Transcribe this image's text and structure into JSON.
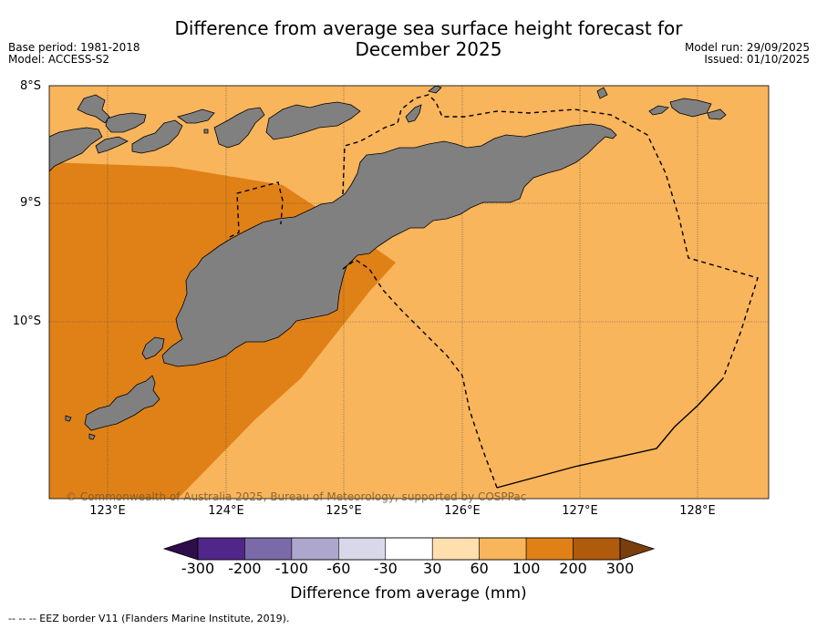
{
  "header": {
    "title_line1": "Difference from average sea surface height forecast for",
    "title_line2": "December 2025",
    "base_period": "Base period: 1981-2018",
    "model": "Model: ACCESS-S2",
    "model_run": "Model run: 29/09/2025",
    "issued": "Issued: 01/10/2025"
  },
  "map": {
    "lat_labels": [
      "8°S",
      "9°S",
      "10°S"
    ],
    "lon_labels": [
      "123°E",
      "124°E",
      "125°E",
      "126°E",
      "127°E",
      "128°E"
    ],
    "copyright": "© Commonwealth of Australia 2025, Bureau of Meteorology, supported by COSPPac",
    "colors": {
      "ocean_light": "#f9b55c",
      "ocean_dark": "#e08117",
      "land": "#808080",
      "gridline": "#404040"
    }
  },
  "colorbar": {
    "title": "Difference from average (mm)",
    "tick_labels": [
      "-300",
      "-200",
      "-100",
      "-60",
      "-30",
      "30",
      "60",
      "100",
      "200",
      "300"
    ],
    "segment_colors": [
      "#51268a",
      "#7b6aa8",
      "#aea7cd",
      "#d8d8ea",
      "#ffffff",
      "#ffdfad",
      "#f9b55c",
      "#e08117",
      "#b05a0b"
    ],
    "under_color": "#2f0c4a",
    "over_color": "#7a3d0c"
  },
  "footer": {
    "legend_text": "--  --  -- EEZ border V11 (Flanders Marine Institute, 2019)."
  }
}
